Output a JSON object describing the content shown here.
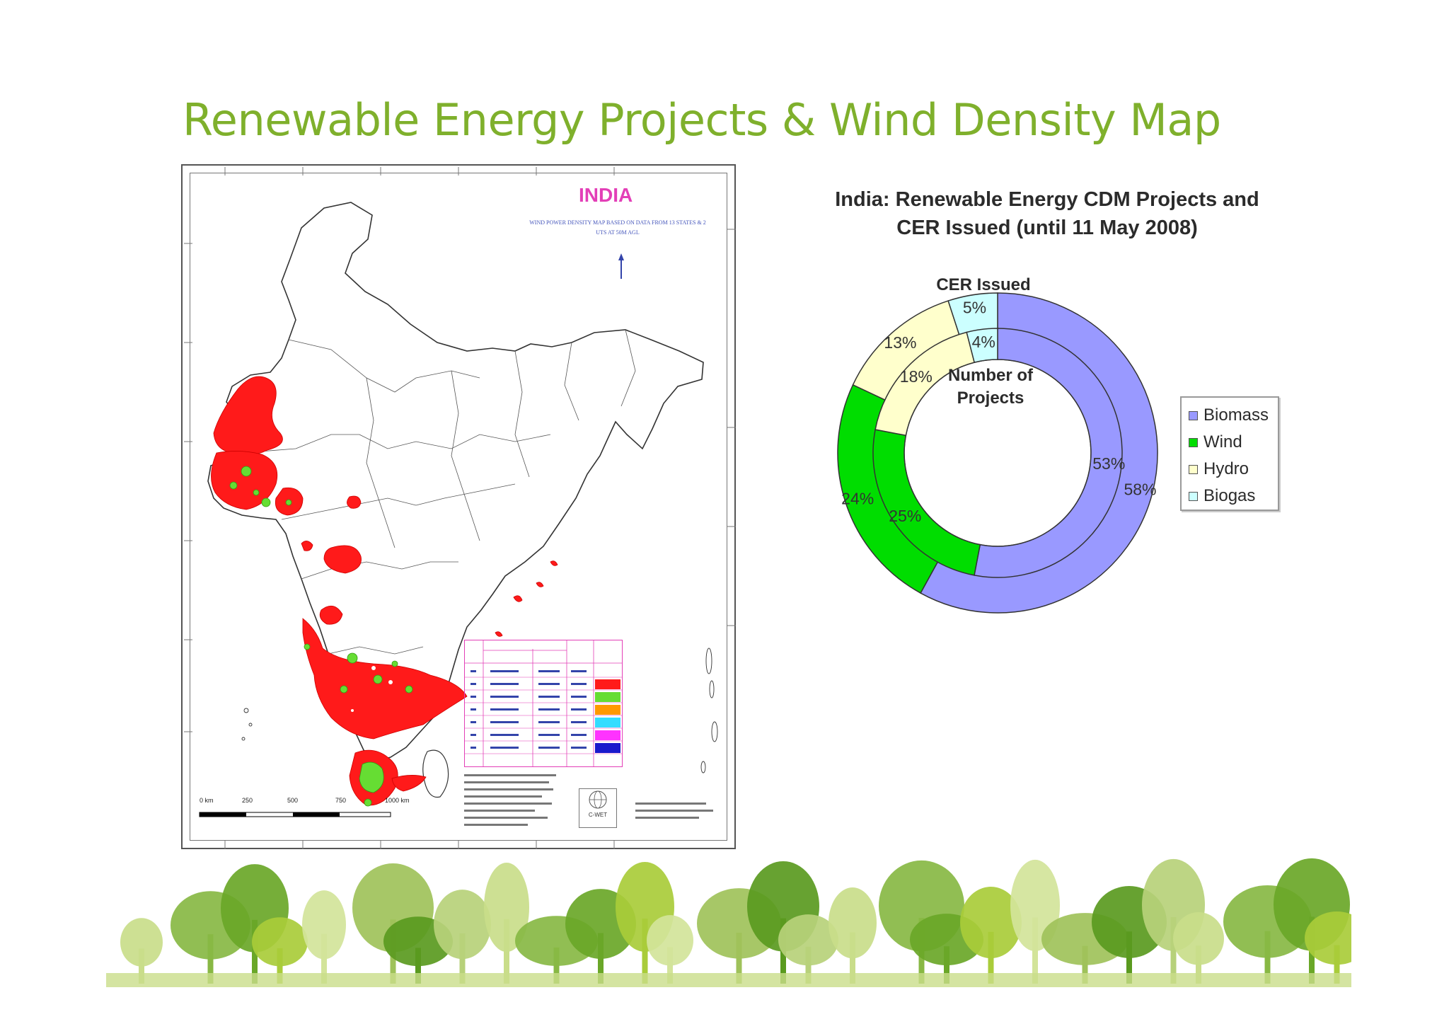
{
  "slide": {
    "title": "Renewable Energy Projects & Wind Density Map"
  },
  "map": {
    "title": "INDIA",
    "subtitle": "WIND POWER DENSITY MAP BASED ON DATA FROM 13 STATES & 2 UTS AT 50M AGL",
    "scale_labels": [
      "0 km",
      "250",
      "500",
      "750",
      "1000 km"
    ],
    "logo_text": "C-WET",
    "legend_colors": [
      "#ff1a1a",
      "#66dd33",
      "#ff9900",
      "#33ddff",
      "#ff33ff",
      "#1a1acc"
    ],
    "region_color": "#ff1a1a",
    "spot_color": "#66dd33"
  },
  "chart_data": {
    "type": "pie",
    "title": "India: Renewable Energy CDM Projects and CER Issued (until 11 May 2008)",
    "title_lines": [
      "India: Renewable Energy CDM Projects and",
      "CER Issued (until 11 May 2008)"
    ],
    "categories": [
      "Biomass",
      "Wind",
      "Hydro",
      "Biogas"
    ],
    "colors": [
      "#9999ff",
      "#00dd00",
      "#ffffcc",
      "#ccffff"
    ],
    "series": [
      {
        "name": "CER Issued",
        "values": [
          58,
          24,
          13,
          5
        ],
        "labels": [
          "58%",
          "24%",
          "13%",
          "5%"
        ]
      },
      {
        "name": "Number of Projects",
        "values": [
          53,
          25,
          18,
          4
        ],
        "labels": [
          "53%",
          "25%",
          "18%",
          "4%"
        ]
      }
    ],
    "legend": "right"
  }
}
